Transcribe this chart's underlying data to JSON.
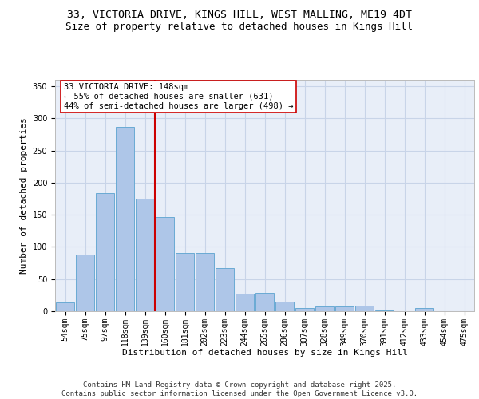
{
  "title_line1": "33, VICTORIA DRIVE, KINGS HILL, WEST MALLING, ME19 4DT",
  "title_line2": "Size of property relative to detached houses in Kings Hill",
  "xlabel": "Distribution of detached houses by size in Kings Hill",
  "ylabel": "Number of detached properties",
  "categories": [
    "54sqm",
    "75sqm",
    "97sqm",
    "118sqm",
    "139sqm",
    "160sqm",
    "181sqm",
    "202sqm",
    "223sqm",
    "244sqm",
    "265sqm",
    "286sqm",
    "307sqm",
    "328sqm",
    "349sqm",
    "370sqm",
    "391sqm",
    "412sqm",
    "433sqm",
    "454sqm",
    "475sqm"
  ],
  "values": [
    14,
    88,
    184,
    287,
    175,
    147,
    91,
    91,
    67,
    27,
    29,
    15,
    5,
    7,
    8,
    9,
    1,
    0,
    5,
    0,
    0
  ],
  "bar_color": "#aec6e8",
  "bar_edge_color": "#6aaad4",
  "grid_color": "#c8d4e8",
  "background_color": "#e8eef8",
  "vline_x": 4.5,
  "vline_color": "#cc0000",
  "annotation_text": "33 VICTORIA DRIVE: 148sqm\n← 55% of detached houses are smaller (631)\n44% of semi-detached houses are larger (498) →",
  "annotation_box_color": "#ffffff",
  "annotation_box_edge": "#cc0000",
  "ylim": [
    0,
    360
  ],
  "yticks": [
    0,
    50,
    100,
    150,
    200,
    250,
    300,
    350
  ],
  "footer_text": "Contains HM Land Registry data © Crown copyright and database right 2025.\nContains public sector information licensed under the Open Government Licence v3.0.",
  "title_fontsize": 9.5,
  "subtitle_fontsize": 9,
  "axis_label_fontsize": 8,
  "tick_fontsize": 7,
  "annotation_fontsize": 7.5,
  "footer_fontsize": 6.5
}
